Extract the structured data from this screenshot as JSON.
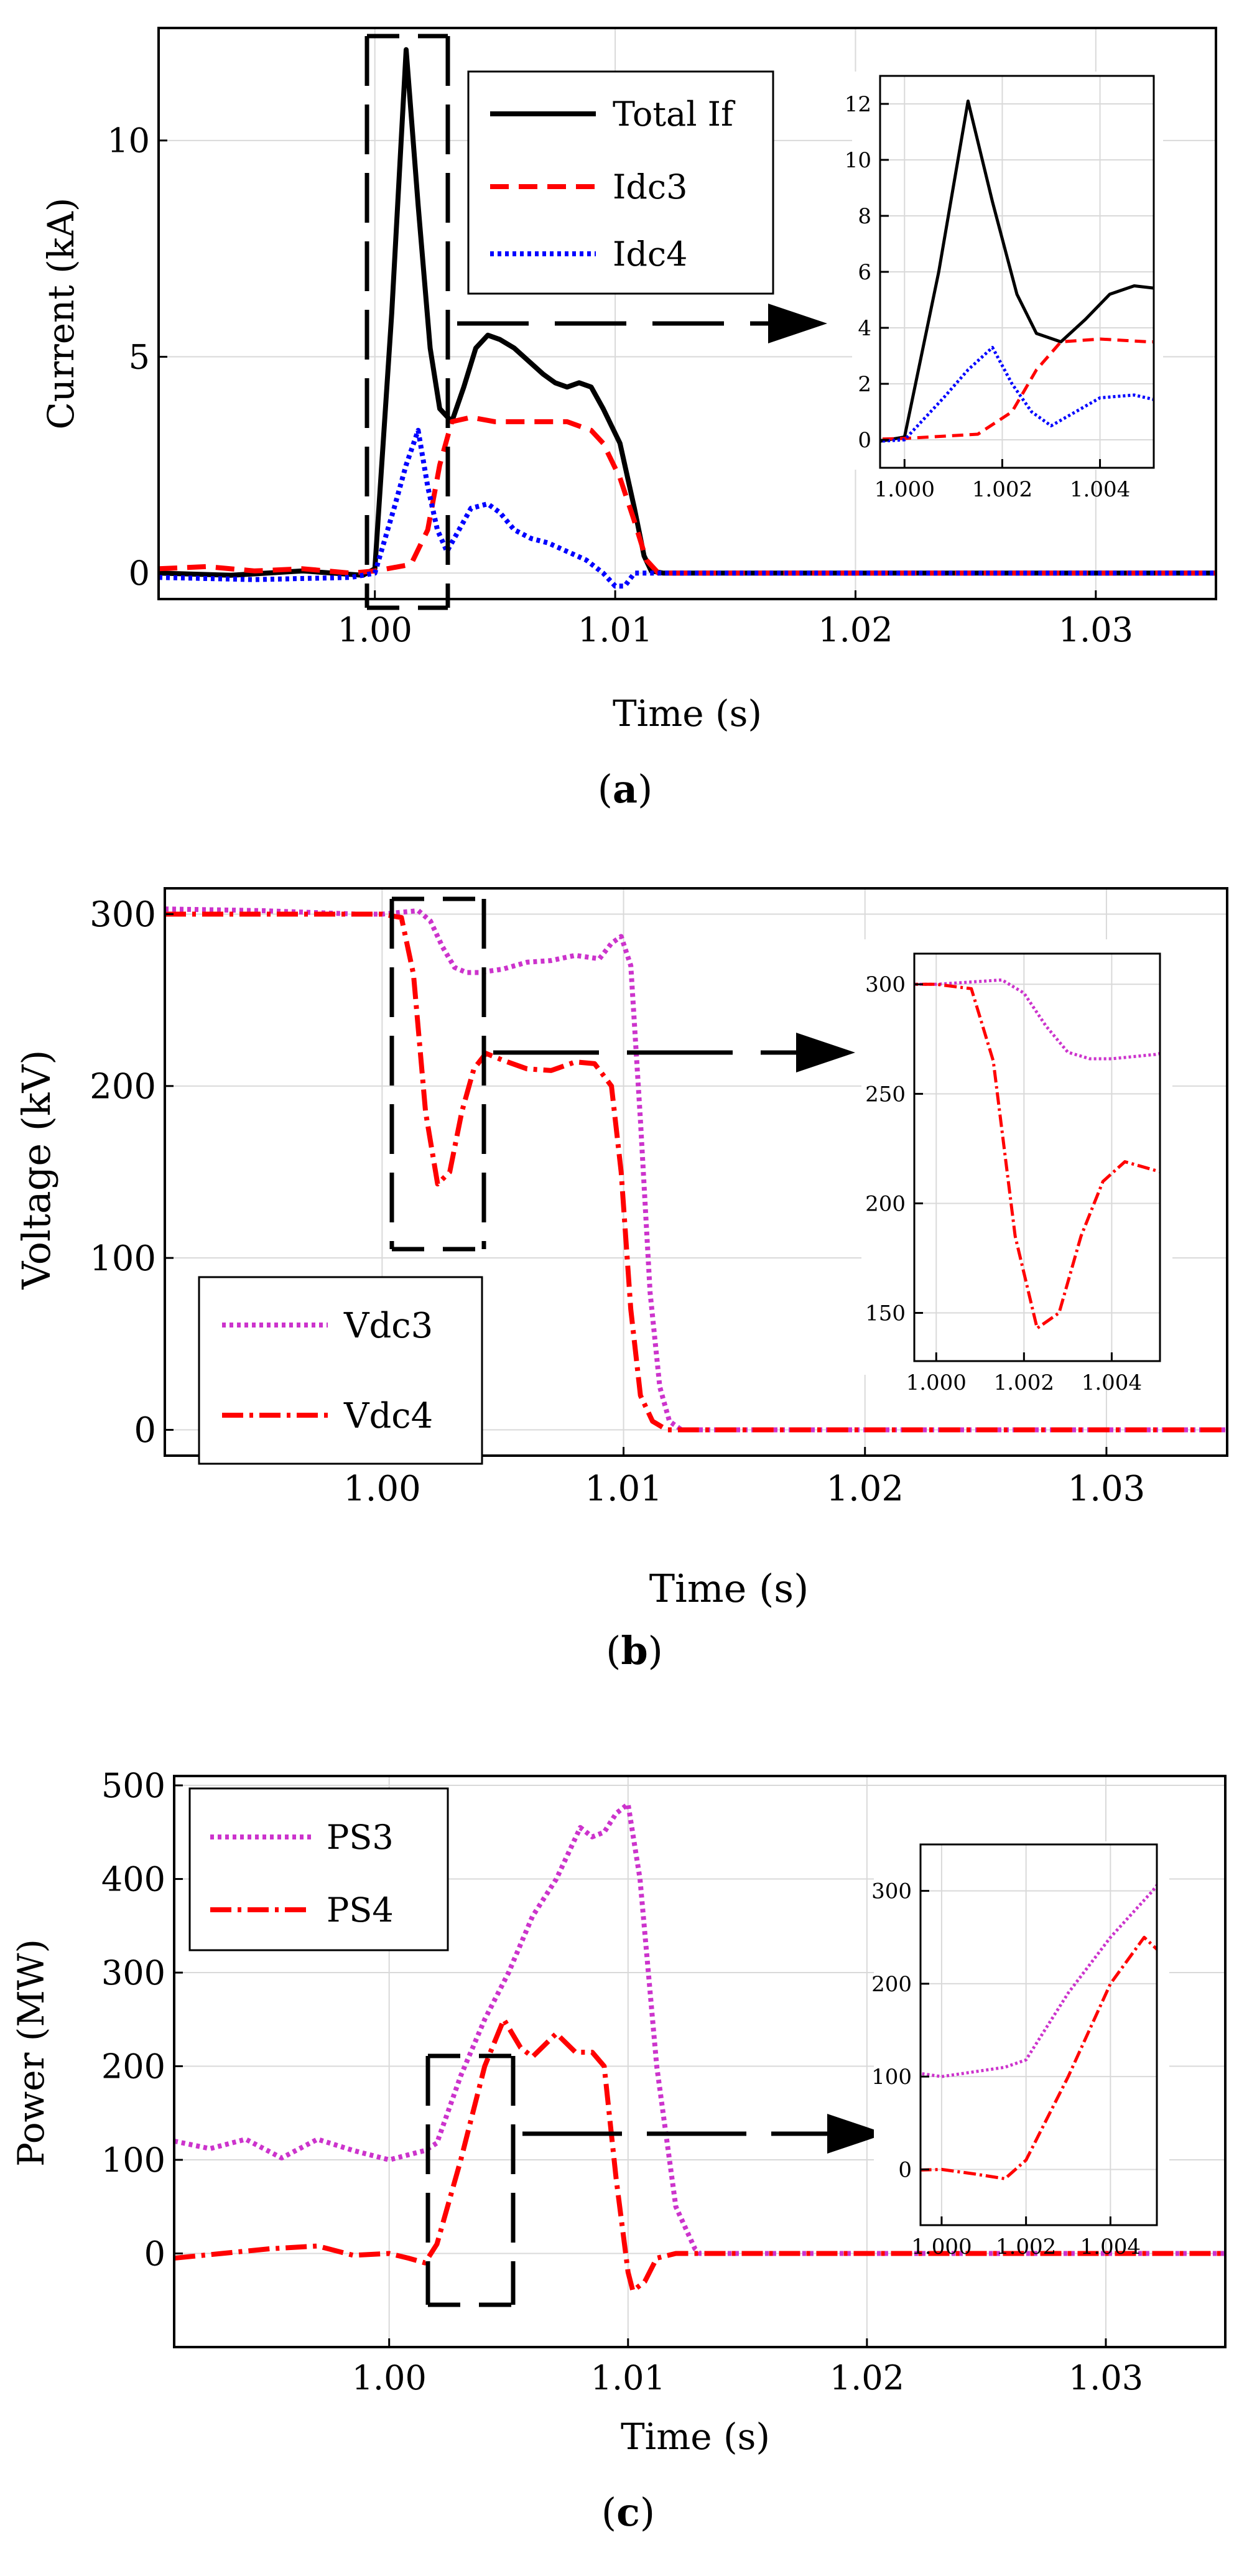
{
  "figure": {
    "captions": [
      {
        "open": "(",
        "letter": "a",
        "close": ")"
      },
      {
        "open": "(",
        "letter": "b",
        "close": ")"
      },
      {
        "open": "(",
        "letter": "c",
        "close": ")"
      }
    ]
  },
  "colors": {
    "black": "#000000",
    "red": "#ff0000",
    "blue": "#0000ff",
    "magenta": "#cc33cc"
  },
  "chart_data": [
    {
      "id": "a",
      "type": "line",
      "ylabel": "Current (kA)",
      "xlabel": "Time (s)",
      "xlim": [
        0.991,
        1.035
      ],
      "ylim": [
        -0.6,
        12.6
      ],
      "xticks": [
        1.0,
        1.01,
        1.02,
        1.03
      ],
      "xtick_labels": [
        "1.00",
        "1.01",
        "1.02",
        "1.03"
      ],
      "yticks": [
        0,
        5,
        10
      ],
      "ytick_labels": [
        "0",
        "5",
        "10"
      ],
      "legend_position": "top-center",
      "series": [
        {
          "name": "Total If",
          "color": "#000000",
          "style": "solid",
          "x": [
            0.991,
            0.994,
            0.997,
            0.9995,
            1.0,
            1.0007,
            1.0013,
            1.0018,
            1.0023,
            1.0027,
            1.0032,
            1.0037,
            1.0042,
            1.0047,
            1.0052,
            1.0058,
            1.0064,
            1.007,
            1.0075,
            1.008,
            1.0085,
            1.009,
            1.0095,
            1.0102,
            1.0108,
            1.0112,
            1.0115,
            1.012,
            1.02,
            1.035
          ],
          "y": [
            0.0,
            -0.05,
            0.05,
            -0.05,
            0.1,
            6.0,
            12.1,
            8.5,
            5.2,
            3.8,
            3.5,
            4.3,
            5.2,
            5.5,
            5.4,
            5.2,
            4.9,
            4.6,
            4.4,
            4.3,
            4.4,
            4.3,
            3.8,
            3.0,
            1.5,
            0.4,
            0.05,
            0.0,
            0.0,
            0.0
          ]
        },
        {
          "name": "Idc3",
          "color": "#ff0000",
          "style": "dashed",
          "x": [
            0.991,
            0.993,
            0.995,
            0.997,
            0.999,
            1.0,
            1.0015,
            1.0022,
            1.0027,
            1.0032,
            1.004,
            1.005,
            1.006,
            1.007,
            1.008,
            1.009,
            1.0095,
            1.0102,
            1.0108,
            1.0113,
            1.0118,
            1.02,
            1.035
          ],
          "y": [
            0.1,
            0.15,
            0.05,
            0.1,
            0.0,
            0.05,
            0.2,
            1.0,
            2.5,
            3.5,
            3.6,
            3.5,
            3.5,
            3.5,
            3.5,
            3.3,
            3.0,
            2.2,
            1.2,
            0.3,
            0.0,
            0.0,
            0.0
          ]
        },
        {
          "name": "Idc4",
          "color": "#0000ff",
          "style": "dotted",
          "x": [
            0.991,
            0.995,
            0.999,
            1.0,
            1.0008,
            1.0013,
            1.0018,
            1.0022,
            1.0026,
            1.003,
            1.0035,
            1.004,
            1.0047,
            1.0052,
            1.0058,
            1.0065,
            1.0072,
            1.008,
            1.0088,
            1.0095,
            1.01,
            1.0104,
            1.0108,
            1.0112,
            1.02,
            1.035
          ],
          "y": [
            -0.1,
            -0.15,
            -0.1,
            0.0,
            1.5,
            2.5,
            3.3,
            2.0,
            1.0,
            0.5,
            1.0,
            1.5,
            1.6,
            1.4,
            1.0,
            0.8,
            0.7,
            0.5,
            0.3,
            0.0,
            -0.3,
            -0.3,
            0.0,
            0.0,
            0.0,
            0.0
          ]
        }
      ],
      "inset": {
        "xlim": [
          0.9995,
          1.0051
        ],
        "ylim": [
          -1,
          13
        ],
        "xticks": [
          1.0,
          1.002,
          1.004
        ],
        "xtick_labels": [
          "1.000",
          "1.002",
          "1.004"
        ],
        "yticks": [
          0,
          2,
          4,
          6,
          8,
          10,
          12
        ],
        "ytick_labels": [
          "0",
          "2",
          "4",
          "6",
          "8",
          "10",
          "12"
        ]
      }
    },
    {
      "id": "b",
      "type": "line",
      "ylabel": "Voltage (kV)",
      "xlabel": "Time (s)",
      "xlim": [
        0.991,
        1.035
      ],
      "ylim": [
        -15,
        315
      ],
      "xticks": [
        1.0,
        1.01,
        1.02,
        1.03
      ],
      "xtick_labels": [
        "1.00",
        "1.01",
        "1.02",
        "1.03"
      ],
      "yticks": [
        0,
        100,
        200,
        300
      ],
      "ytick_labels": [
        "0",
        "100",
        "200",
        "300"
      ],
      "legend_position": "bottom-left",
      "series": [
        {
          "name": "Vdc3",
          "color": "#cc33cc",
          "style": "dotted",
          "x": [
            0.991,
            0.995,
            0.999,
            1.0,
            1.0015,
            1.002,
            1.0025,
            1.003,
            1.0035,
            1.004,
            1.005,
            1.006,
            1.007,
            1.008,
            1.009,
            1.0095,
            1.0099,
            1.0103,
            1.0107,
            1.0111,
            1.0115,
            1.0119,
            1.0124,
            1.013,
            1.02,
            1.035
          ],
          "y": [
            303,
            302,
            300,
            300,
            302,
            296,
            281,
            269,
            266,
            266,
            268,
            272,
            273,
            276,
            274,
            283,
            287,
            270,
            180,
            80,
            25,
            5,
            0,
            0,
            0,
            0
          ]
        },
        {
          "name": "Vdc4",
          "color": "#ff0000",
          "style": "dashdot",
          "x": [
            0.991,
            0.995,
            0.999,
            1.0,
            1.0008,
            1.0013,
            1.0018,
            1.0023,
            1.0028,
            1.0033,
            1.0038,
            1.0043,
            1.005,
            1.006,
            1.007,
            1.008,
            1.0088,
            1.0095,
            1.0099,
            1.0103,
            1.0107,
            1.0112,
            1.0118,
            1.012,
            1.02,
            1.035
          ],
          "y": [
            300,
            300,
            300,
            300,
            298,
            265,
            185,
            143,
            150,
            185,
            210,
            219,
            215,
            210,
            209,
            214,
            213,
            200,
            150,
            70,
            20,
            5,
            0,
            0,
            0,
            0
          ]
        }
      ],
      "inset": {
        "xlim": [
          0.9995,
          1.0051
        ],
        "ylim": [
          128,
          314
        ],
        "xticks": [
          1.0,
          1.002,
          1.004
        ],
        "xtick_labels": [
          "1.000",
          "1.002",
          "1.004"
        ],
        "yticks": [
          150,
          200,
          250,
          300
        ],
        "ytick_labels": [
          "150",
          "200",
          "250",
          "300"
        ]
      }
    },
    {
      "id": "c",
      "type": "line",
      "ylabel": "Power (MW)",
      "xlabel": "Time (s)",
      "xlim": [
        0.991,
        1.035
      ],
      "ylim": [
        -100,
        510
      ],
      "xticks": [
        1.0,
        1.01,
        1.02,
        1.03
      ],
      "xtick_labels": [
        "1.00",
        "1.01",
        "1.02",
        "1.03"
      ],
      "yticks": [
        0,
        100,
        200,
        300,
        400,
        500
      ],
      "ytick_labels": [
        "0",
        "100",
        "200",
        "300",
        "400",
        "500"
      ],
      "legend_position": "top-left",
      "series": [
        {
          "name": "PS3",
          "color": "#cc33cc",
          "style": "dotted",
          "x": [
            0.991,
            0.9925,
            0.994,
            0.9955,
            0.997,
            0.9985,
            1.0,
            1.0015,
            1.002,
            1.003,
            1.004,
            1.005,
            1.006,
            1.007,
            1.008,
            1.0085,
            1.009,
            1.0095,
            1.01,
            1.0105,
            1.0112,
            1.012,
            1.0128,
            1.013,
            1.02,
            1.035
          ],
          "y": [
            120,
            112,
            122,
            102,
            122,
            110,
            100,
            110,
            118,
            190,
            250,
            300,
            360,
            400,
            455,
            445,
            450,
            470,
            480,
            400,
            200,
            50,
            5,
            0,
            0,
            0
          ]
        },
        {
          "name": "PS4",
          "color": "#ff0000",
          "style": "dashdot",
          "x": [
            0.991,
            0.993,
            0.995,
            0.997,
            0.9985,
            1.0,
            1.0008,
            1.0015,
            1.002,
            1.003,
            1.004,
            1.0048,
            1.0055,
            1.006,
            1.007,
            1.0078,
            1.0085,
            1.009,
            1.0095,
            1.01,
            1.0102,
            1.0107,
            1.0112,
            1.012,
            1.02,
            1.035
          ],
          "y": [
            -5,
            0,
            5,
            8,
            -2,
            0,
            -5,
            -10,
            10,
            100,
            200,
            250,
            220,
            210,
            235,
            215,
            215,
            200,
            80,
            -20,
            -40,
            -30,
            -5,
            0,
            0,
            0
          ]
        }
      ],
      "inset": {
        "xlim": [
          0.9995,
          1.0051
        ],
        "ylim": [
          -60,
          350
        ],
        "xticks": [
          1.0,
          1.002,
          1.004
        ],
        "xtick_labels": [
          "1.000",
          "1.002",
          "1.004"
        ],
        "yticks": [
          0,
          100,
          200,
          300
        ],
        "ytick_labels": [
          "0",
          "100",
          "200",
          "300"
        ]
      }
    }
  ]
}
